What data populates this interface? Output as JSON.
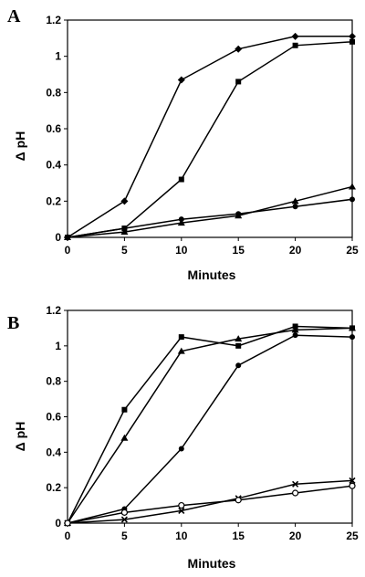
{
  "chart_data": [
    {
      "type": "line",
      "panel_label": "A",
      "xlabel": "Minutes",
      "ylabel": "Δ pH",
      "xlim": [
        0,
        25
      ],
      "ylim": [
        0,
        1.2
      ],
      "x_ticks": [
        "0",
        "5",
        "10",
        "15",
        "20",
        "25"
      ],
      "y_ticks": [
        "0",
        "0.2",
        "0.4",
        "0.6",
        "0.8",
        "1",
        "1.2"
      ],
      "grid": false,
      "x": [
        0,
        5,
        10,
        15,
        20,
        25
      ],
      "series": [
        {
          "marker": "diamond",
          "values": [
            0,
            0.2,
            0.87,
            1.04,
            1.11,
            1.11
          ]
        },
        {
          "marker": "square",
          "values": [
            0,
            0.05,
            0.32,
            0.86,
            1.06,
            1.08
          ]
        },
        {
          "marker": "triangle",
          "values": [
            0,
            0.03,
            0.08,
            0.12,
            0.2,
            0.28
          ]
        },
        {
          "marker": "circle-filled",
          "values": [
            0,
            0.05,
            0.1,
            0.13,
            0.17,
            0.21
          ]
        }
      ]
    },
    {
      "type": "line",
      "panel_label": "B",
      "xlabel": "Minutes",
      "ylabel": "Δ pH",
      "xlim": [
        0,
        25
      ],
      "ylim": [
        0,
        1.2
      ],
      "x_ticks": [
        "0",
        "5",
        "10",
        "15",
        "20",
        "25"
      ],
      "y_ticks": [
        "0",
        "0.2",
        "0.4",
        "0.6",
        "0.8",
        "1",
        "1.2"
      ],
      "grid": false,
      "x": [
        0,
        5,
        10,
        15,
        20,
        25
      ],
      "series": [
        {
          "marker": "square",
          "values": [
            0,
            0.64,
            1.05,
            1.0,
            1.11,
            1.1
          ]
        },
        {
          "marker": "triangle",
          "values": [
            0,
            0.48,
            0.97,
            1.04,
            1.09,
            1.1
          ]
        },
        {
          "marker": "circle-filled",
          "values": [
            0,
            0.08,
            0.42,
            0.89,
            1.06,
            1.05
          ]
        },
        {
          "marker": "x",
          "values": [
            0,
            0.02,
            0.07,
            0.14,
            0.22,
            0.24
          ]
        },
        {
          "marker": "circle-open",
          "values": [
            0,
            0.06,
            0.1,
            0.13,
            0.17,
            0.21
          ]
        }
      ]
    }
  ]
}
